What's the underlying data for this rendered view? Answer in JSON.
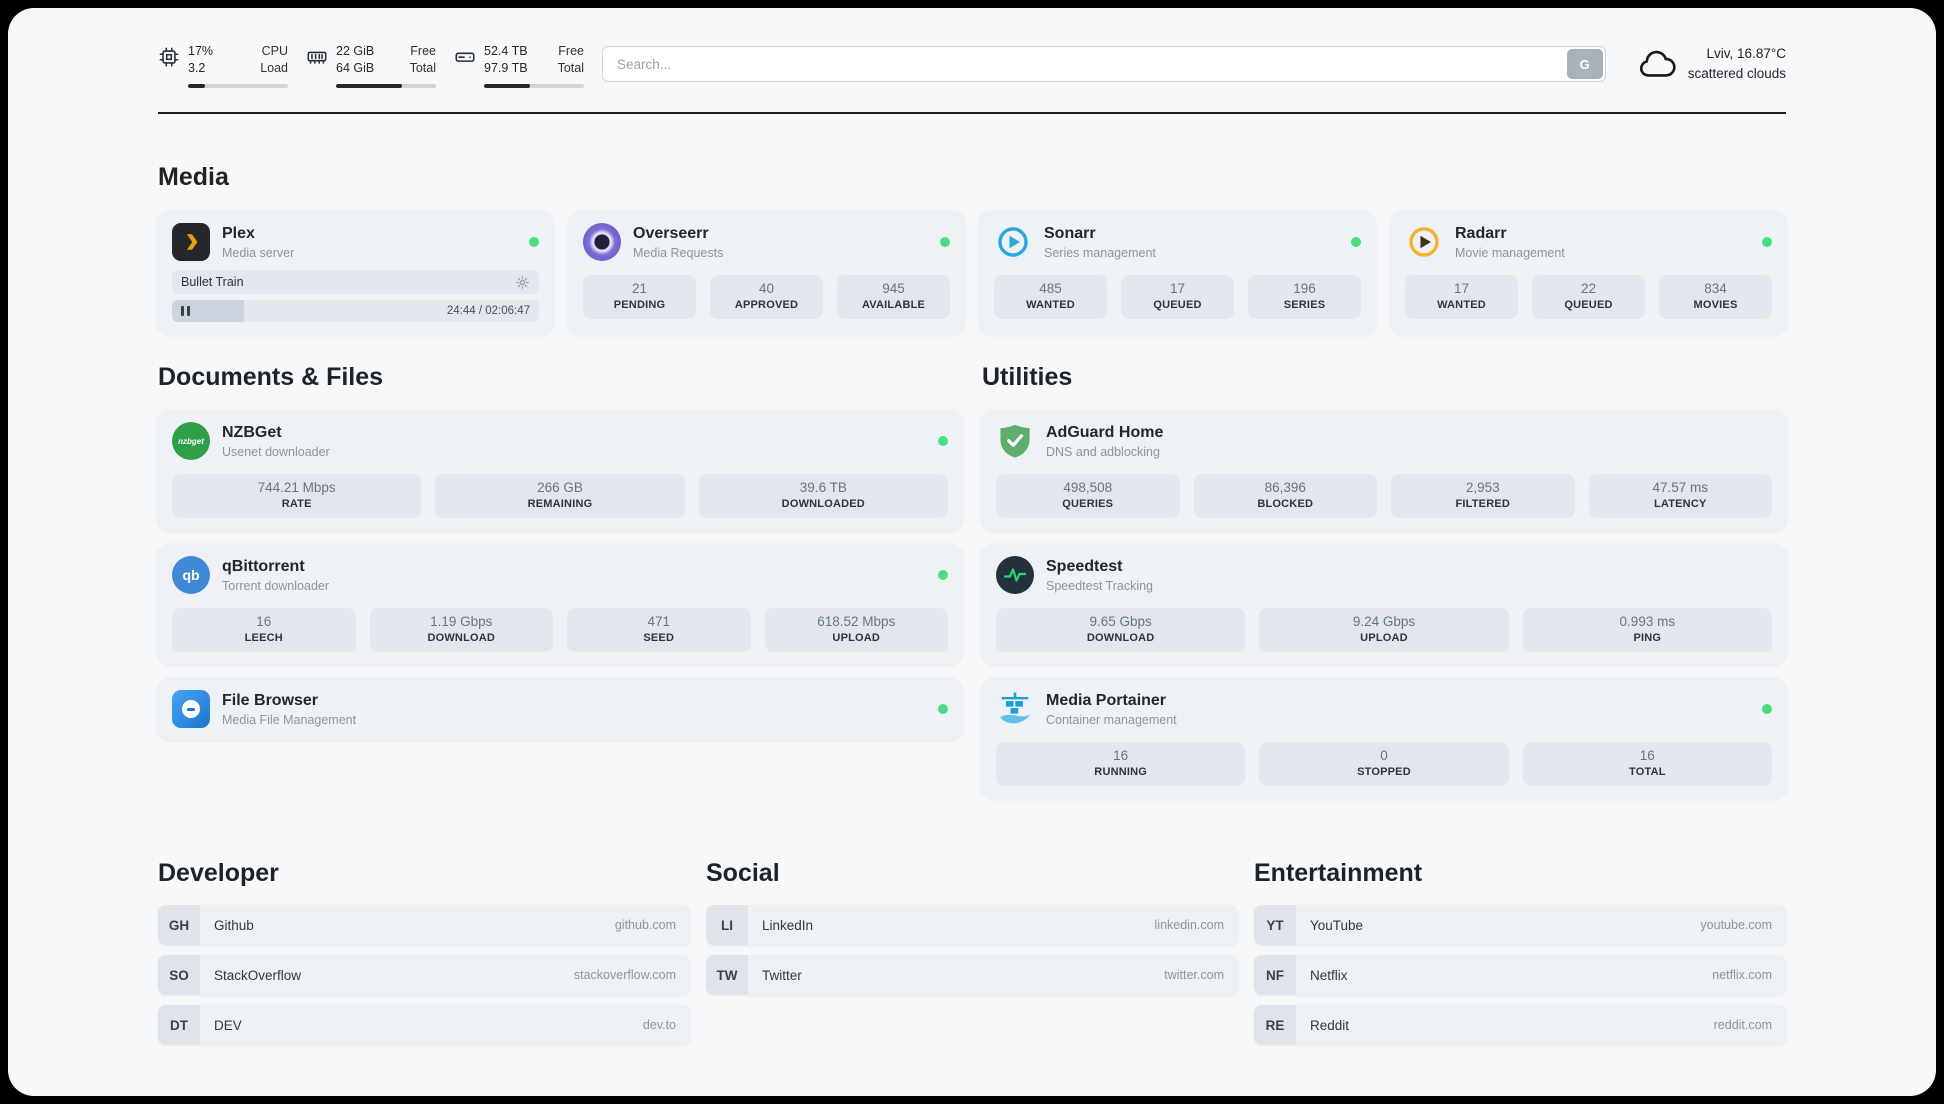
{
  "colors": {
    "status_online": "#4ade80",
    "panel_background": "#f6f8fa",
    "card_background": "#eef1f5",
    "stat_background": "#e2e7ee",
    "plex_accent": "#e8a00d",
    "sonarr_accent": "#2ba7de",
    "radarr_accent": "#f2b32c",
    "nzbget_accent": "#2f9e49",
    "adguard_accent": "#5ead6d",
    "portainer_accent": "#1a9fd4"
  },
  "icons": {
    "cpu-icon": "chip-outline",
    "ram-icon": "memory-stick-outline",
    "disk-icon": "hard-drive-outline",
    "search-engine-button": "G",
    "weather-cloud-icon": "cloud-outline",
    "plex-icon": "dark rounded square with amber chevron",
    "overseerr-icon": "purple spiral circle",
    "sonarr-icon": "blue ring with play triangle",
    "radarr-icon": "amber ring with play triangle",
    "nzbget-icon": "green circle with nzbget wordmark",
    "qbittorrent-icon": "blue circle with qb letters",
    "filebrowser-icon": "blue rounded square with white disc",
    "adguard-icon": "green shield with white check",
    "speedtest-icon": "dark circle with green pulse line",
    "portainer-icon": "blue crane and containers",
    "gear-icon": "⚙",
    "pause-icon": "❚❚",
    "status-dot": "●"
  },
  "header": {
    "cpu": {
      "value1": "17%",
      "value2": "3.2",
      "label1": "CPU",
      "label2": "Load",
      "bar": "17%"
    },
    "ram": {
      "value1": "22 GiB",
      "value2": "64 GiB",
      "label1": "Free",
      "label2": "Total",
      "bar": "66%"
    },
    "disk": {
      "value1": "52.4 TB",
      "value2": "97.9 TB",
      "label1": "Free",
      "label2": "Total",
      "bar": "46%"
    },
    "search": {
      "placeholder": "Search...",
      "button": "G"
    },
    "weather": {
      "location": "Lviv, 16.87°C",
      "condition": "scattered clouds"
    }
  },
  "sections": {
    "media": {
      "title": "Media"
    },
    "documents": {
      "title": "Documents & Files"
    },
    "utilities": {
      "title": "Utilities"
    },
    "developer": {
      "title": "Developer"
    },
    "social": {
      "title": "Social"
    },
    "entertainment": {
      "title": "Entertainment"
    }
  },
  "services": {
    "plex": {
      "name": "Plex",
      "subtitle": "Media server",
      "now_playing": "Bullet Train",
      "time": "24:44 / 02:06:47",
      "progress": "19.5%",
      "status": "online"
    },
    "overseerr": {
      "name": "Overseerr",
      "subtitle": "Media Requests",
      "status": "online",
      "stats": [
        {
          "value": "21",
          "label": "PENDING"
        },
        {
          "value": "40",
          "label": "APPROVED"
        },
        {
          "value": "945",
          "label": "AVAILABLE"
        }
      ]
    },
    "sonarr": {
      "name": "Sonarr",
      "subtitle": "Series management",
      "status": "online",
      "stats": [
        {
          "value": "485",
          "label": "WANTED"
        },
        {
          "value": "17",
          "label": "QUEUED"
        },
        {
          "value": "196",
          "label": "SERIES"
        }
      ]
    },
    "radarr": {
      "name": "Radarr",
      "subtitle": "Movie management",
      "status": "online",
      "stats": [
        {
          "value": "17",
          "label": "WANTED"
        },
        {
          "value": "22",
          "label": "QUEUED"
        },
        {
          "value": "834",
          "label": "MOVIES"
        }
      ]
    },
    "nzbget": {
      "name": "NZBGet",
      "subtitle": "Usenet downloader",
      "status": "online",
      "icon_text": "nzbget",
      "stats": [
        {
          "value": "744.21 Mbps",
          "label": "RATE"
        },
        {
          "value": "266 GB",
          "label": "REMAINING"
        },
        {
          "value": "39.6 TB",
          "label": "DOWNLOADED"
        }
      ]
    },
    "qbittorrent": {
      "name": "qBittorrent",
      "subtitle": "Torrent downloader",
      "status": "online",
      "icon_text": "qb",
      "stats": [
        {
          "value": "16",
          "label": "LEECH"
        },
        {
          "value": "1.19 Gbps",
          "label": "DOWNLOAD"
        },
        {
          "value": "471",
          "label": "SEED"
        },
        {
          "value": "618.52 Mbps",
          "label": "UPLOAD"
        }
      ]
    },
    "filebrowser": {
      "name": "File Browser",
      "subtitle": "Media File Management",
      "status": "online"
    },
    "adguard": {
      "name": "AdGuard Home",
      "subtitle": "DNS and adblocking",
      "stats": [
        {
          "value": "498,508",
          "label": "QUERIES"
        },
        {
          "value": "86,396",
          "label": "BLOCKED"
        },
        {
          "value": "2,953",
          "label": "FILTERED"
        },
        {
          "value": "47.57 ms",
          "label": "LATENCY"
        }
      ]
    },
    "speedtest": {
      "name": "Speedtest",
      "subtitle": "Speedtest Tracking",
      "stats": [
        {
          "value": "9.65 Gbps",
          "label": "DOWNLOAD"
        },
        {
          "value": "9.24 Gbps",
          "label": "UPLOAD"
        },
        {
          "value": "0.993 ms",
          "label": "PING"
        }
      ]
    },
    "portainer": {
      "name": "Media Portainer",
      "subtitle": "Container management",
      "status": "online",
      "stats": [
        {
          "value": "16",
          "label": "RUNNING"
        },
        {
          "value": "0",
          "label": "STOPPED"
        },
        {
          "value": "16",
          "label": "TOTAL"
        }
      ]
    }
  },
  "bookmarks": {
    "developer": [
      {
        "abbr": "GH",
        "name": "Github",
        "url": "github.com"
      },
      {
        "abbr": "SO",
        "name": "StackOverflow",
        "url": "stackoverflow.com"
      },
      {
        "abbr": "DT",
        "name": "DEV",
        "url": "dev.to"
      }
    ],
    "social": [
      {
        "abbr": "LI",
        "name": "LinkedIn",
        "url": "linkedin.com"
      },
      {
        "abbr": "TW",
        "name": "Twitter",
        "url": "twitter.com"
      }
    ],
    "entertainment": [
      {
        "abbr": "YT",
        "name": "YouTube",
        "url": "youtube.com"
      },
      {
        "abbr": "NF",
        "name": "Netflix",
        "url": "netflix.com"
      },
      {
        "abbr": "RE",
        "name": "Reddit",
        "url": "reddit.com"
      }
    ]
  }
}
